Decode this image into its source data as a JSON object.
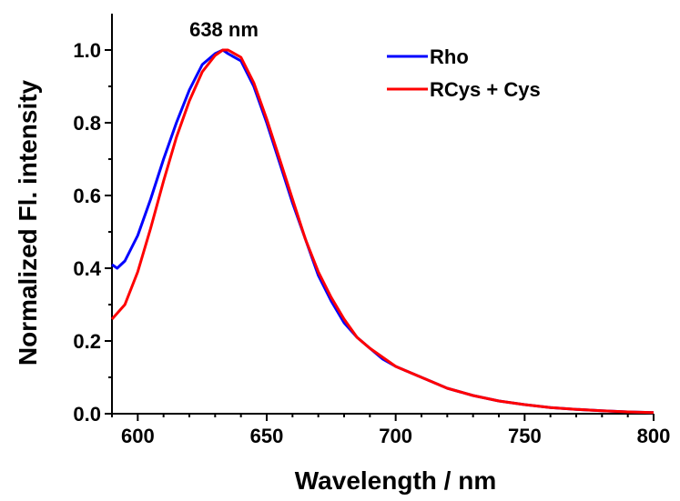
{
  "chart_data": {
    "type": "line",
    "xlabel": "Wavelength / nm",
    "ylabel": "Normalized Fl. intensity",
    "xlim": [
      590,
      800
    ],
    "ylim": [
      0.0,
      1.1
    ],
    "x_ticks": [
      600,
      650,
      700,
      750,
      800
    ],
    "x_tick_labels": [
      "600",
      "650",
      "700",
      "750",
      "800"
    ],
    "y_ticks": [
      0.0,
      0.2,
      0.4,
      0.6,
      0.8,
      1.0
    ],
    "y_tick_labels": [
      "0.0",
      "0.2",
      "0.4",
      "0.6",
      "0.8",
      "1.0"
    ],
    "grid": false,
    "legend_position": "top-right",
    "annotations": [
      {
        "text": "638 nm",
        "x": 638,
        "y": 1.03
      }
    ],
    "series": [
      {
        "name": "Rho",
        "color": "#0000ff",
        "x": [
          590,
          592,
          595,
          600,
          605,
          610,
          615,
          620,
          625,
          630,
          633,
          635,
          640,
          645,
          650,
          655,
          660,
          665,
          670,
          675,
          680,
          685,
          690,
          695,
          700,
          705,
          710,
          715,
          720,
          725,
          730,
          740,
          750,
          760,
          770,
          780,
          790,
          800
        ],
        "y": [
          0.41,
          0.4,
          0.42,
          0.49,
          0.59,
          0.7,
          0.8,
          0.89,
          0.96,
          0.99,
          1.0,
          0.99,
          0.97,
          0.9,
          0.8,
          0.69,
          0.58,
          0.48,
          0.38,
          0.31,
          0.25,
          0.21,
          0.18,
          0.15,
          0.13,
          0.115,
          0.1,
          0.085,
          0.07,
          0.06,
          0.05,
          0.035,
          0.025,
          0.017,
          0.012,
          0.008,
          0.005,
          0.003
        ]
      },
      {
        "name": "RCys + Cys",
        "color": "#ff0000",
        "x": [
          590,
          595,
          600,
          605,
          610,
          615,
          620,
          625,
          630,
          633,
          635,
          640,
          645,
          650,
          655,
          660,
          665,
          670,
          675,
          680,
          685,
          690,
          695,
          700,
          705,
          710,
          715,
          720,
          725,
          730,
          740,
          750,
          760,
          770,
          780,
          790,
          800
        ],
        "y": [
          0.26,
          0.3,
          0.39,
          0.51,
          0.64,
          0.76,
          0.86,
          0.94,
          0.985,
          1.0,
          1.0,
          0.98,
          0.91,
          0.81,
          0.7,
          0.59,
          0.48,
          0.39,
          0.32,
          0.26,
          0.21,
          0.18,
          0.155,
          0.13,
          0.115,
          0.1,
          0.085,
          0.07,
          0.06,
          0.05,
          0.035,
          0.025,
          0.017,
          0.012,
          0.008,
          0.005,
          0.003
        ]
      }
    ]
  }
}
